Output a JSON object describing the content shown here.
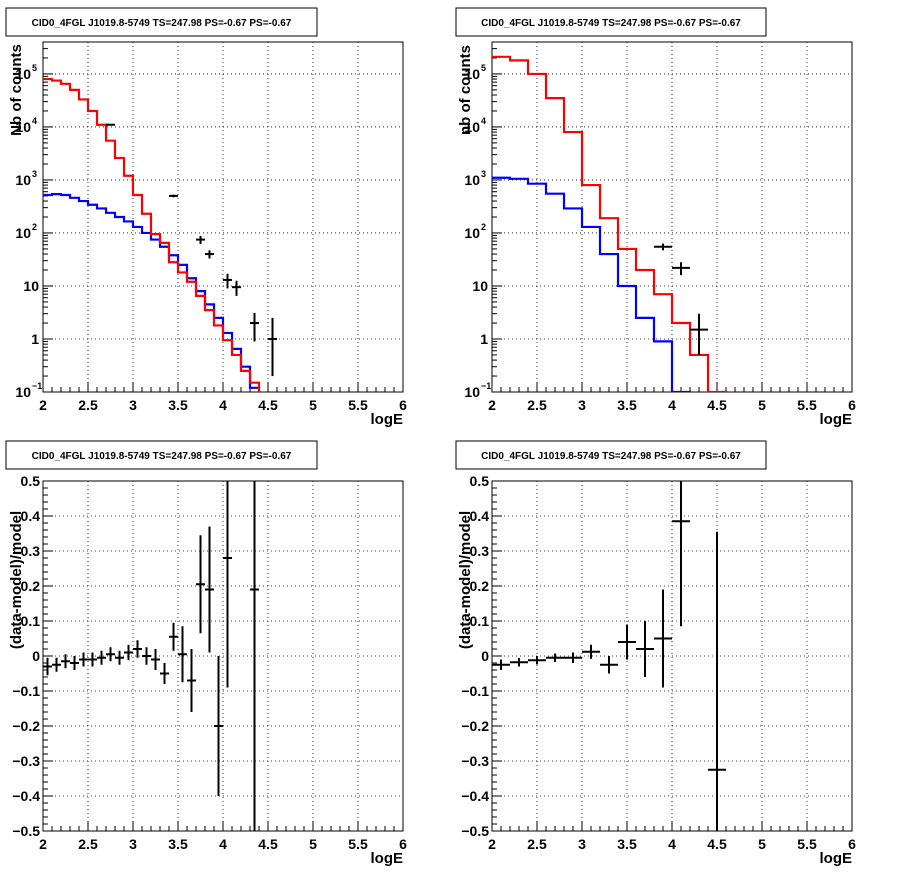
{
  "chart_data": [
    {
      "type": "step",
      "title": "CID0_4FGL J1019.8-5749 TS=247.98 PS=-0.67 PS=-0.67",
      "xlabel": "logE",
      "ylabel": "Nb of counts",
      "yscale": "log",
      "xlim": [
        2,
        6
      ],
      "ylim": [
        0.1,
        400000
      ],
      "xticks": [
        "2",
        "2.5",
        "3",
        "3.5",
        "4",
        "4.5",
        "5",
        "5.5",
        "6"
      ],
      "yticks": [
        {
          "value": 0.1,
          "label": "10",
          "exp": "−1"
        },
        {
          "value": 1,
          "label": "1",
          "exp": ""
        },
        {
          "value": 10,
          "label": "10",
          "exp": ""
        },
        {
          "value": 100,
          "label": "10",
          "exp": "2"
        },
        {
          "value": 1000,
          "label": "10",
          "exp": "3"
        },
        {
          "value": 10000,
          "label": "10",
          "exp": "4"
        },
        {
          "value": 100000,
          "label": "10",
          "exp": "5"
        }
      ],
      "grid": true,
      "bin_edges": [
        2.0,
        2.1,
        2.2,
        2.3,
        2.4,
        2.5,
        2.6,
        2.7,
        2.8,
        2.9,
        3.0,
        3.1,
        3.2,
        3.3,
        3.4,
        3.5,
        3.6,
        3.7,
        3.8,
        3.9,
        4.0,
        4.1,
        4.2,
        4.3,
        4.4,
        4.5,
        4.6,
        4.7,
        4.8,
        4.9,
        5.0,
        5.1,
        5.2,
        5.3,
        5.4,
        5.5,
        5.6,
        5.7,
        5.8,
        5.9,
        6.0
      ],
      "series": [
        {
          "color": "#0000ff",
          "values": [
            520,
            540,
            520,
            460,
            400,
            340,
            290,
            240,
            200,
            165,
            130,
            100,
            75,
            55,
            38,
            25,
            14,
            8,
            4.5,
            2.5,
            1.3,
            0.65,
            0.3,
            0.12,
            0.08,
            0.08,
            0.08,
            0.08,
            0.08,
            0.08,
            0.08,
            0.08,
            0.08,
            0.08,
            0.08,
            0.08,
            0.08,
            0.08,
            0.08,
            0.08
          ]
        },
        {
          "color": "#ff0000",
          "values": [
            80000,
            75000,
            65000,
            50000,
            33000,
            20000,
            11000,
            5500,
            2600,
            1200,
            520,
            230,
            95,
            65,
            28,
            18,
            12,
            6.5,
            3.5,
            1.8,
            0.95,
            0.5,
            0.25,
            0.15,
            0.08,
            0.08,
            0.08,
            0.08,
            0.08,
            0.08,
            0.08,
            0.08,
            0.08,
            0.08,
            0.08,
            0.08,
            0.08,
            0.08,
            0.08,
            0.08
          ]
        }
      ],
      "data_points": [
        {
          "x": 2.75,
          "y": 11000,
          "lo": 10800,
          "hi": 11200
        },
        {
          "x": 3.45,
          "y": 500,
          "lo": 470,
          "hi": 530
        },
        {
          "x": 3.75,
          "y": 75,
          "lo": 62,
          "hi": 88
        },
        {
          "x": 3.85,
          "y": 40,
          "lo": 33,
          "hi": 47
        },
        {
          "x": 4.05,
          "y": 13,
          "lo": 9,
          "hi": 17
        },
        {
          "x": 4.15,
          "y": 9.5,
          "lo": 6.5,
          "hi": 12.5
        },
        {
          "x": 4.35,
          "y": 2,
          "lo": 0.9,
          "hi": 3.1
        },
        {
          "x": 4.55,
          "y": 1,
          "lo": 0.2,
          "hi": 2.5
        }
      ]
    },
    {
      "type": "step",
      "title": "CID0_4FGL J1019.8-5749 TS=247.98 PS=-0.67 PS=-0.67",
      "xlabel": "logE",
      "ylabel": "nb of counts",
      "yscale": "log",
      "xlim": [
        2,
        6
      ],
      "ylim": [
        0.1,
        400000
      ],
      "xticks": [
        "2",
        "2.5",
        "3",
        "3.5",
        "4",
        "4.5",
        "5",
        "5.5",
        "6"
      ],
      "yticks": [
        {
          "value": 0.1,
          "label": "10",
          "exp": "−1"
        },
        {
          "value": 1,
          "label": "1",
          "exp": ""
        },
        {
          "value": 10,
          "label": "10",
          "exp": ""
        },
        {
          "value": 100,
          "label": "10",
          "exp": "2"
        },
        {
          "value": 1000,
          "label": "10",
          "exp": "3"
        },
        {
          "value": 10000,
          "label": "10",
          "exp": "4"
        },
        {
          "value": 100000,
          "label": "10",
          "exp": "5"
        }
      ],
      "grid": true,
      "bin_edges": [
        2.0,
        2.2,
        2.4,
        2.6,
        2.8,
        3.0,
        3.2,
        3.4,
        3.6,
        3.8,
        4.0,
        4.2,
        4.4,
        4.6,
        4.8,
        5.0,
        5.2,
        5.4,
        5.6,
        5.8,
        6.0
      ],
      "series": [
        {
          "color": "#0000ff",
          "values": [
            1100,
            1050,
            850,
            550,
            290,
            130,
            40,
            10,
            2.5,
            0.9,
            0.1,
            0.08,
            0.08,
            0.08,
            0.08,
            0.08,
            0.08,
            0.08,
            0.08,
            0.08
          ]
        },
        {
          "color": "#ff0000",
          "values": [
            210000,
            180000,
            100000,
            35000,
            8000,
            800,
            190,
            50,
            20,
            7,
            2,
            0.5,
            0.1,
            0.08,
            0.08,
            0.08,
            0.08,
            0.08,
            0.08,
            0.08
          ]
        }
      ],
      "data_points": [
        {
          "x": 3.9,
          "y": 55,
          "lo": 47,
          "hi": 63
        },
        {
          "x": 4.1,
          "y": 22,
          "lo": 16,
          "hi": 28
        },
        {
          "x": 4.3,
          "y": 1.5,
          "lo": 0.5,
          "hi": 3
        }
      ]
    },
    {
      "type": "errorbar",
      "title": "CID0_4FGL J1019.8-5749 TS=247.98 PS=-0.67 PS=-0.67",
      "xlabel": "logE",
      "ylabel": "(data-model)/model",
      "xlim": [
        2,
        6
      ],
      "ylim": [
        -0.5,
        0.5
      ],
      "xticks": [
        "2",
        "2.5",
        "3",
        "3.5",
        "4",
        "4.5",
        "5",
        "5.5",
        "6"
      ],
      "yticks": [
        "−0.5",
        "−0.4",
        "−0.3",
        "−0.2",
        "−0.1",
        "0",
        "0.1",
        "0.2",
        "0.3",
        "0.4",
        "0.5"
      ],
      "grid": true,
      "xerr": 0.05,
      "points": [
        {
          "x": 2.05,
          "y": -0.03,
          "err": 0.025
        },
        {
          "x": 2.15,
          "y": -0.025,
          "err": 0.02
        },
        {
          "x": 2.25,
          "y": -0.015,
          "err": 0.02
        },
        {
          "x": 2.35,
          "y": -0.02,
          "err": 0.02
        },
        {
          "x": 2.45,
          "y": -0.01,
          "err": 0.02
        },
        {
          "x": 2.55,
          "y": -0.01,
          "err": 0.02
        },
        {
          "x": 2.65,
          "y": -0.005,
          "err": 0.02
        },
        {
          "x": 2.75,
          "y": 0.005,
          "err": 0.02
        },
        {
          "x": 2.85,
          "y": -0.005,
          "err": 0.02
        },
        {
          "x": 2.95,
          "y": 0.01,
          "err": 0.022
        },
        {
          "x": 3.05,
          "y": 0.02,
          "err": 0.025
        },
        {
          "x": 3.15,
          "y": 0.0,
          "err": 0.025
        },
        {
          "x": 3.25,
          "y": -0.01,
          "err": 0.03
        },
        {
          "x": 3.35,
          "y": -0.05,
          "err": 0.03
        },
        {
          "x": 3.45,
          "y": 0.055,
          "err": 0.04
        },
        {
          "x": 3.55,
          "y": 0.005,
          "err": 0.08
        },
        {
          "x": 3.65,
          "y": -0.07,
          "err": 0.09
        },
        {
          "x": 3.75,
          "y": 0.205,
          "err": 0.14
        },
        {
          "x": 3.85,
          "y": 0.19,
          "err": 0.18
        },
        {
          "x": 3.95,
          "y": -0.2,
          "err": 0.2
        },
        {
          "x": 4.05,
          "y": 0.28,
          "err": 0.37
        },
        {
          "x": 4.35,
          "y": 0.19,
          "err": 0.72
        }
      ]
    },
    {
      "type": "errorbar",
      "title": "CID0_4FGL J1019.8-5749 TS=247.98 PS=-0.67 PS=-0.67",
      "xlabel": "logE",
      "ylabel": "(data-model)/model",
      "xlim": [
        2,
        6
      ],
      "ylim": [
        -0.5,
        0.5
      ],
      "xticks": [
        "2",
        "2.5",
        "3",
        "3.5",
        "4",
        "4.5",
        "5",
        "5.5",
        "6"
      ],
      "yticks": [
        "−0.5",
        "−0.4",
        "−0.3",
        "−0.2",
        "−0.1",
        "0",
        "0.1",
        "0.2",
        "0.3",
        "0.4",
        "0.5"
      ],
      "grid": true,
      "xerr": 0.1,
      "points": [
        {
          "x": 2.1,
          "y": -0.025,
          "err": 0.015
        },
        {
          "x": 2.3,
          "y": -0.018,
          "err": 0.012
        },
        {
          "x": 2.5,
          "y": -0.012,
          "err": 0.012
        },
        {
          "x": 2.7,
          "y": -0.005,
          "err": 0.012
        },
        {
          "x": 2.9,
          "y": -0.005,
          "err": 0.015
        },
        {
          "x": 3.1,
          "y": 0.012,
          "err": 0.02
        },
        {
          "x": 3.3,
          "y": -0.025,
          "err": 0.025
        },
        {
          "x": 3.5,
          "y": 0.04,
          "err": 0.05
        },
        {
          "x": 3.7,
          "y": 0.02,
          "err": 0.08
        },
        {
          "x": 3.9,
          "y": 0.05,
          "err": 0.14
        },
        {
          "x": 4.1,
          "y": 0.385,
          "err": 0.3
        },
        {
          "x": 4.5,
          "y": -0.325,
          "err": 0.68
        }
      ]
    }
  ]
}
